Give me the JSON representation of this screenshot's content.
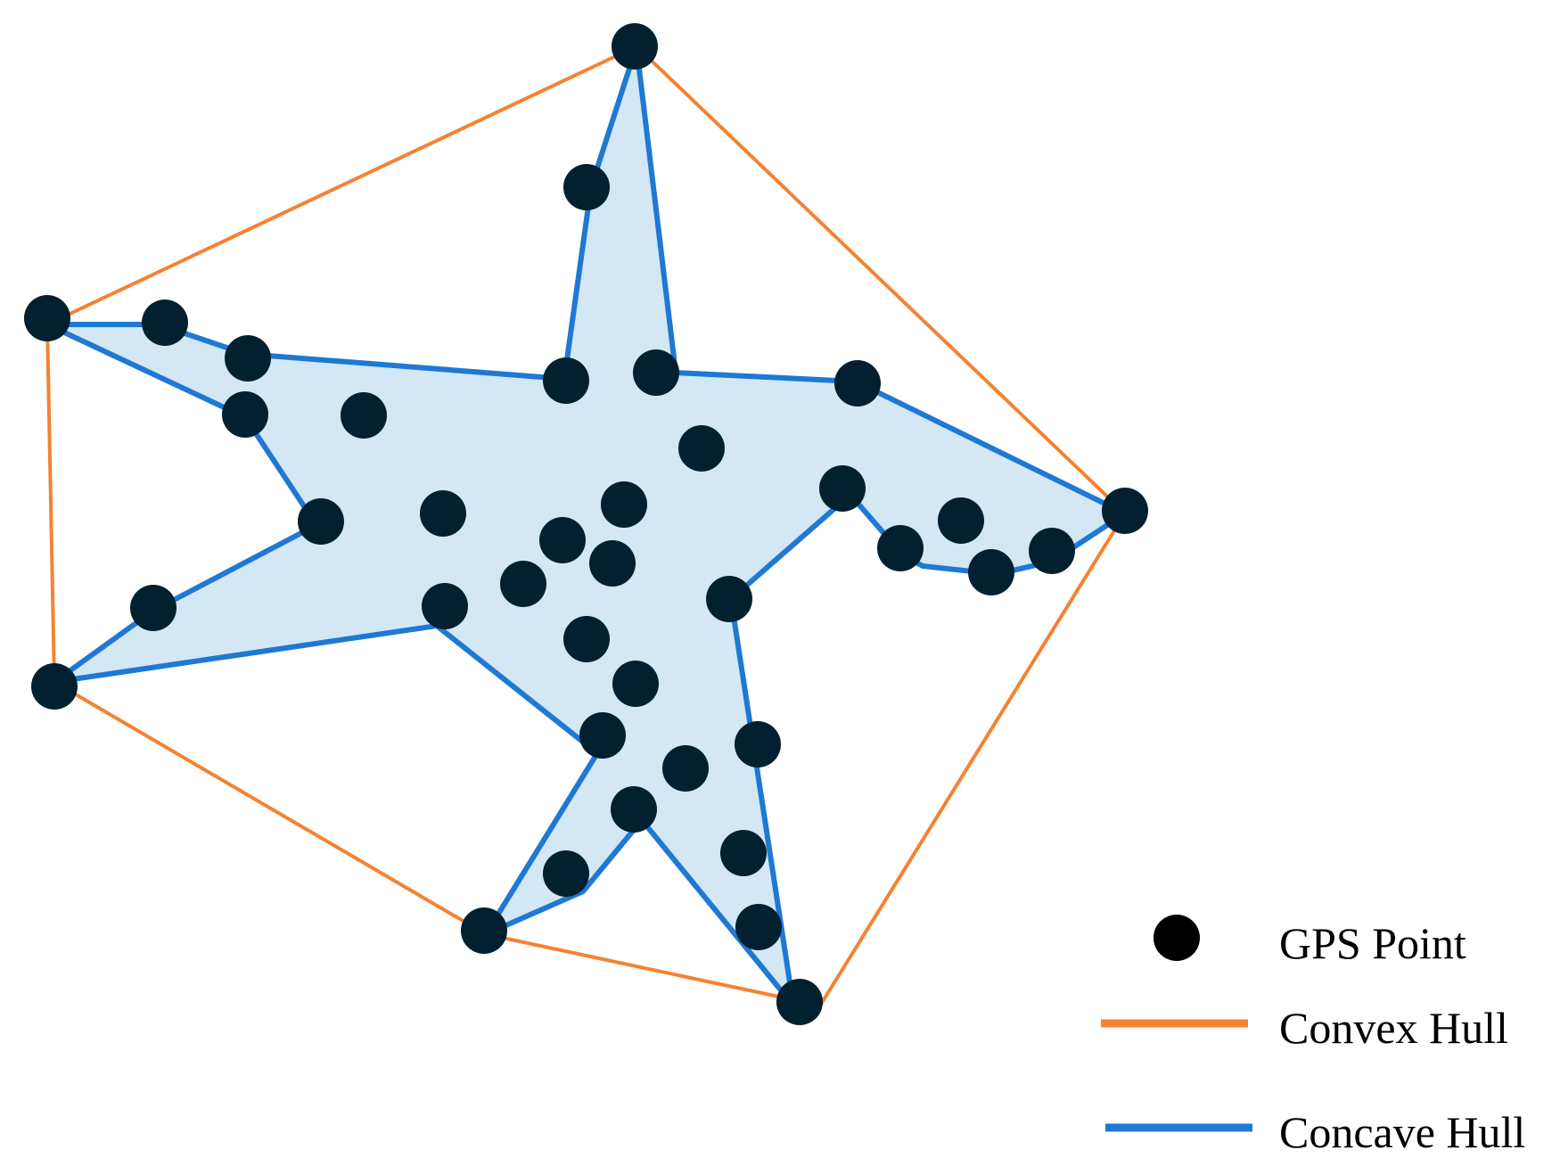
{
  "legend": {
    "gps_point": "GPS Point",
    "convex_hull": "Convex Hull",
    "concave_hull": "Concave Hull"
  },
  "colors": {
    "gps_point": "#02202f",
    "legend_point": "#000000",
    "convex_hull": "#f58231",
    "concave_hull": "#1f78d4",
    "concave_fill": "#d3e7f5"
  }
}
